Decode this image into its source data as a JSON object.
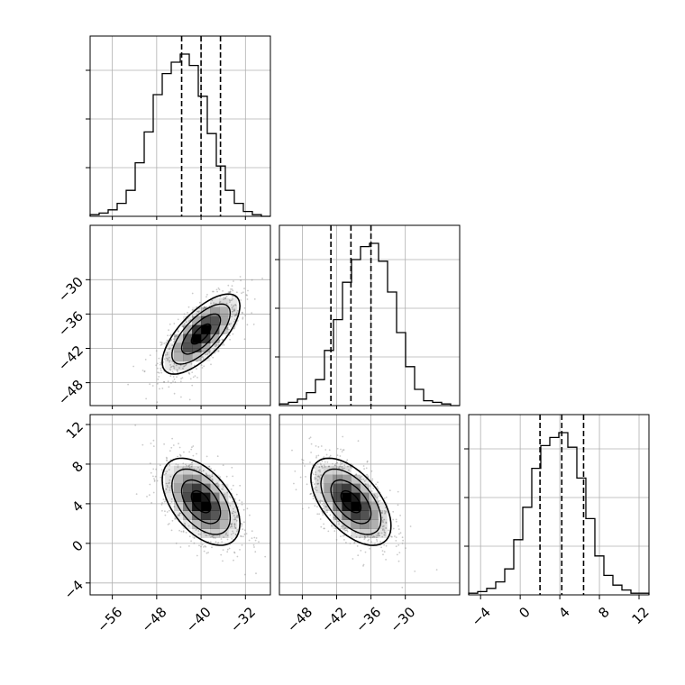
{
  "chart_data": {
    "type": "corner",
    "grid": true,
    "colors": {
      "line": "#000000",
      "grid": "#b0b0b0",
      "density": "#000000"
    },
    "parameters": [
      {
        "xlim": [
          -60,
          -27.5
        ],
        "ticks": [
          -56,
          -48,
          -40,
          -32
        ],
        "tick_labels": [
          "−56",
          "−48",
          "−40",
          "−32"
        ],
        "quantiles": [
          -43.5,
          -40.0,
          -36.5
        ],
        "hist": [
          1,
          2,
          4,
          8,
          16,
          33,
          52,
          75,
          88,
          95,
          100,
          93,
          74,
          51,
          31,
          16,
          8,
          3,
          1,
          0
        ]
      },
      {
        "xlim": [
          -52,
          -20.5
        ],
        "ticks": [
          -48,
          -42,
          -36,
          -30
        ],
        "tick_labels": [
          "−48",
          "−42",
          "−36",
          "−30"
        ],
        "quantiles": [
          -43.0,
          -39.5,
          -36.0
        ],
        "hist": [
          1,
          2,
          4,
          8,
          16,
          34,
          53,
          76,
          90,
          98,
          100,
          89,
          70,
          45,
          24,
          10,
          3,
          2,
          1,
          0
        ]
      },
      {
        "xlim": [
          -5.2,
          13.0
        ],
        "ticks": [
          -4,
          0,
          4,
          8,
          12
        ],
        "tick_labels": [
          "−4",
          "0",
          "4",
          "8",
          "12"
        ],
        "quantiles": [
          2.0,
          4.2,
          6.4
        ],
        "hist": [
          1,
          2,
          4,
          8,
          16,
          34,
          54,
          78,
          92,
          97,
          100,
          91,
          72,
          47,
          24,
          12,
          6,
          3,
          1,
          1
        ]
      }
    ],
    "pairs": [
      {
        "row": 1,
        "col": 0,
        "center": [
          -40.0,
          -39.5
        ],
        "corr": 0.7
      },
      {
        "row": 2,
        "col": 0,
        "center": [
          -40.0,
          4.2
        ],
        "corr": -0.5
      },
      {
        "row": 2,
        "col": 1,
        "center": [
          -39.5,
          4.2
        ],
        "corr": -0.55
      }
    ]
  }
}
